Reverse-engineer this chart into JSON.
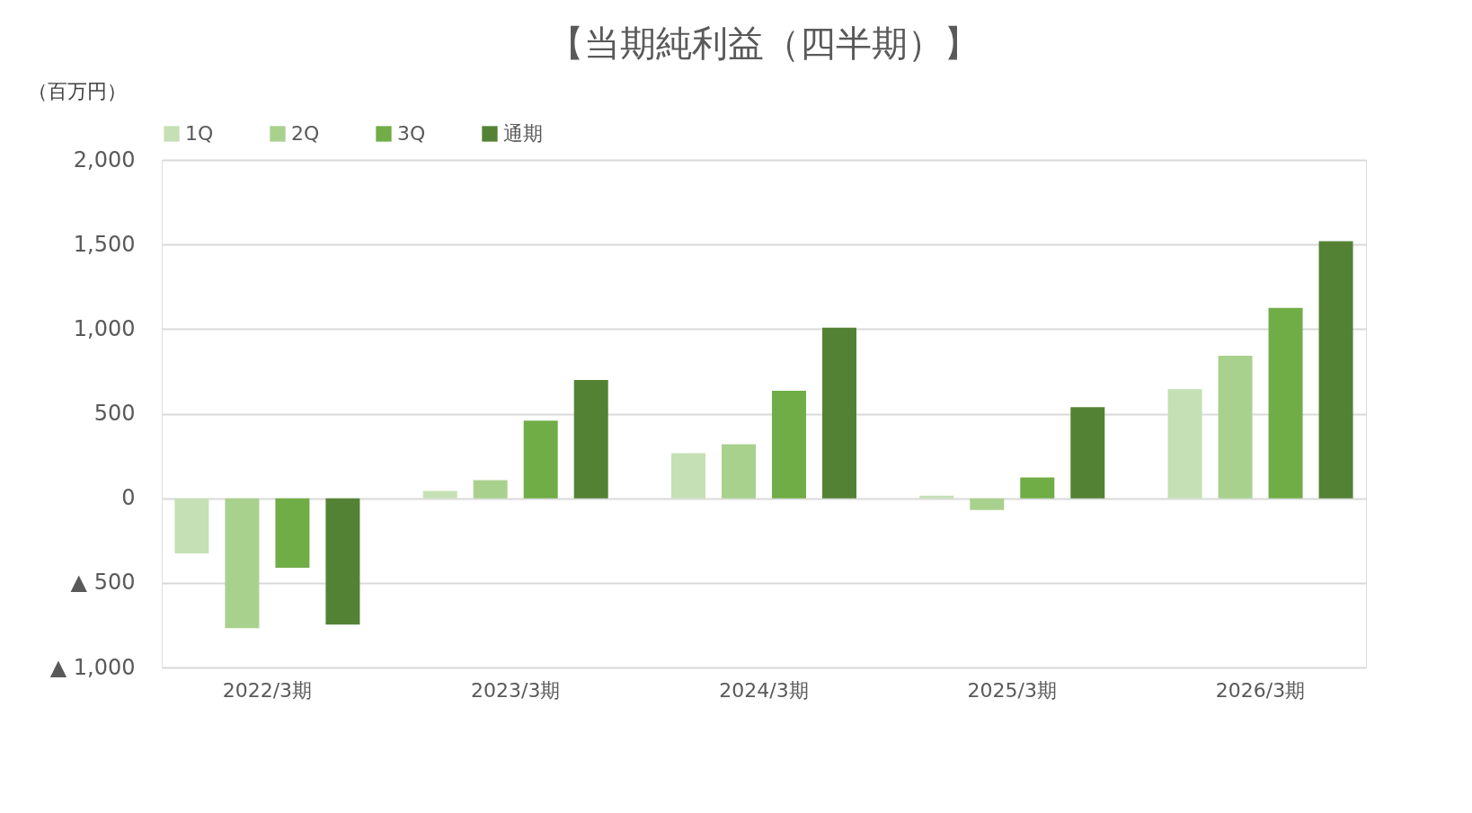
{
  "chart_data": {
    "type": "bar",
    "title": "【当期純利益（四半期）】",
    "ylabel": "（百万円）",
    "categories": [
      "2022/3期",
      "2023/3期",
      "2024/3期",
      "2025/3期",
      "2026/3期"
    ],
    "series": [
      {
        "name": "1Q",
        "color": "#c5e0b4",
        "values": [
          -325,
          43,
          267,
          16,
          645
        ]
      },
      {
        "name": "2Q",
        "color": "#a9d18e",
        "values": [
          -768,
          107,
          320,
          -69,
          843
        ]
      },
      {
        "name": "3Q",
        "color": "#70ad47",
        "values": [
          -411,
          459,
          635,
          123,
          1125
        ]
      },
      {
        "name": "通期",
        "color": "#548235",
        "values": [
          -747,
          699,
          1008,
          539,
          1520
        ]
      }
    ],
    "ylim": [
      -1000,
      2000
    ],
    "yticks": [
      {
        "value": -1000,
        "label": "▲ 1,000"
      },
      {
        "value": -500,
        "label": "▲ 500"
      },
      0,
      500,
      "1,000",
      "1,500",
      "2,000"
    ],
    "grid": "y",
    "legend": "top"
  }
}
